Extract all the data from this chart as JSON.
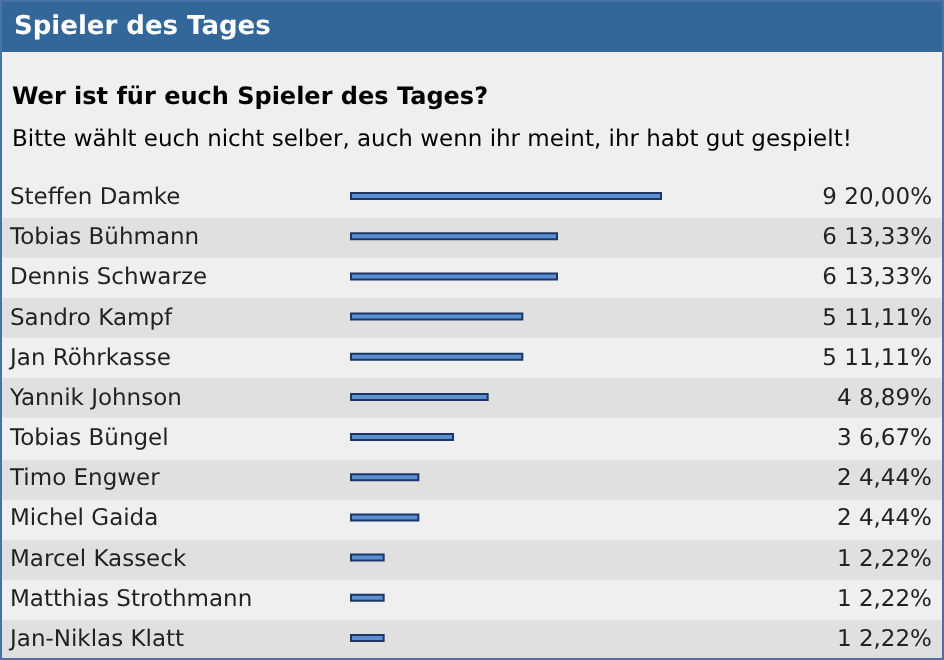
{
  "chart_data": {
    "type": "bar",
    "orientation": "horizontal",
    "title": "Spieler des Tages",
    "subtitle": "Wer ist für euch Spieler des Tages?",
    "annotations": [
      "Bitte wählt euch nicht selber, auch wenn ihr meint, ihr habt gut gespielt!"
    ],
    "categories": [
      "Steffen Damke",
      "Tobias Bühmann",
      "Dennis Schwarze",
      "Sandro Kampf",
      "Jan Röhrkasse",
      "Yannik Johnson",
      "Tobias Büngel",
      "Timo Engwer",
      "Michel Gaida",
      "Marcel Kasseck",
      "Matthias Strothmann",
      "Jan-Niklas Klatt"
    ],
    "values": [
      9,
      6,
      6,
      5,
      5,
      4,
      3,
      2,
      2,
      1,
      1,
      1
    ],
    "value_labels": [
      "9 20,00%",
      "6 13,33%",
      "6 13,33%",
      "5 11,11%",
      "5 11,11%",
      "4 8,89%",
      "3 6,67%",
      "2 4,44%",
      "2 4,44%",
      "1 2,22%",
      "1 2,22%",
      "1 2,22%"
    ],
    "color": "#5b8fd0"
  }
}
